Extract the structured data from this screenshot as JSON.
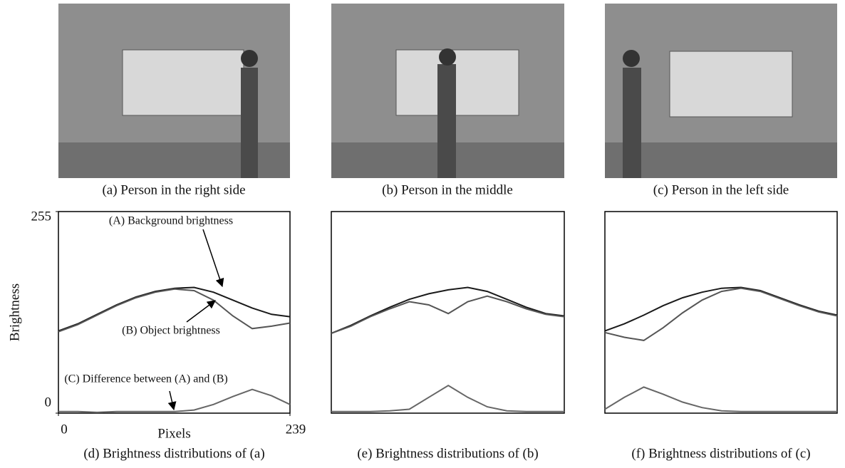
{
  "photos": [
    {
      "caption": "(a)  Person in the right side"
    },
    {
      "caption": "(b)  Person in the middle"
    },
    {
      "caption": "(c)  Person in the left side"
    }
  ],
  "chart_data": [
    {
      "type": "line",
      "caption": "(d)  Brightness distributions of (a)",
      "x_label": "Pixels",
      "y_label": "Brightness",
      "x": [
        0,
        20,
        40,
        60,
        80,
        100,
        120,
        140,
        160,
        180,
        200,
        220,
        239
      ],
      "xlim": [
        0,
        239
      ],
      "xticks": [
        0,
        239
      ],
      "ylim": [
        0,
        255
      ],
      "yticks": [
        0,
        255
      ],
      "series": [
        {
          "name": "(A) Background brightness",
          "color": "#1a1a1a",
          "values": [
            104,
            113,
            125,
            137,
            147,
            154,
            158,
            159,
            153,
            143,
            133,
            125,
            122
          ]
        },
        {
          "name": "(B) Object brightness",
          "color": "#555555",
          "values": [
            103,
            112,
            124,
            136,
            146,
            153,
            157,
            155,
            143,
            123,
            107,
            110,
            114
          ]
        },
        {
          "name": "(C) Difference between (A) and (B)",
          "color": "#666666",
          "values": [
            2,
            2,
            1,
            2,
            2,
            2,
            2,
            4,
            11,
            21,
            30,
            22,
            11
          ]
        }
      ]
    },
    {
      "type": "line",
      "caption": "(e)  Brightness distributions of (b)",
      "x": [
        0,
        20,
        40,
        60,
        80,
        100,
        120,
        140,
        160,
        180,
        200,
        220,
        239
      ],
      "xlim": [
        0,
        239
      ],
      "ylim": [
        0,
        255
      ],
      "series": [
        {
          "color": "#1a1a1a",
          "values": [
            101,
            111,
            123,
            134,
            144,
            151,
            156,
            159,
            154,
            144,
            134,
            126,
            123
          ]
        },
        {
          "color": "#555555",
          "values": [
            101,
            110,
            122,
            132,
            141,
            137,
            126,
            141,
            148,
            141,
            132,
            125,
            122
          ]
        },
        {
          "color": "#666666",
          "values": [
            2,
            2,
            2,
            3,
            5,
            20,
            35,
            20,
            8,
            3,
            2,
            2,
            2
          ]
        }
      ]
    },
    {
      "type": "line",
      "caption": "(f)  Brightness distributions of (c)",
      "x": [
        0,
        20,
        40,
        60,
        80,
        100,
        120,
        140,
        160,
        180,
        200,
        220,
        239
      ],
      "xlim": [
        0,
        239
      ],
      "ylim": [
        0,
        255
      ],
      "series": [
        {
          "color": "#1a1a1a",
          "values": [
            104,
            113,
            124,
            136,
            146,
            153,
            158,
            159,
            155,
            146,
            137,
            129,
            124
          ]
        },
        {
          "color": "#555555",
          "values": [
            102,
            96,
            92,
            108,
            127,
            143,
            154,
            158,
            154,
            145,
            136,
            128,
            123
          ]
        },
        {
          "color": "#666666",
          "values": [
            5,
            20,
            33,
            24,
            14,
            7,
            3,
            2,
            2,
            2,
            2,
            2,
            2
          ]
        }
      ]
    }
  ]
}
